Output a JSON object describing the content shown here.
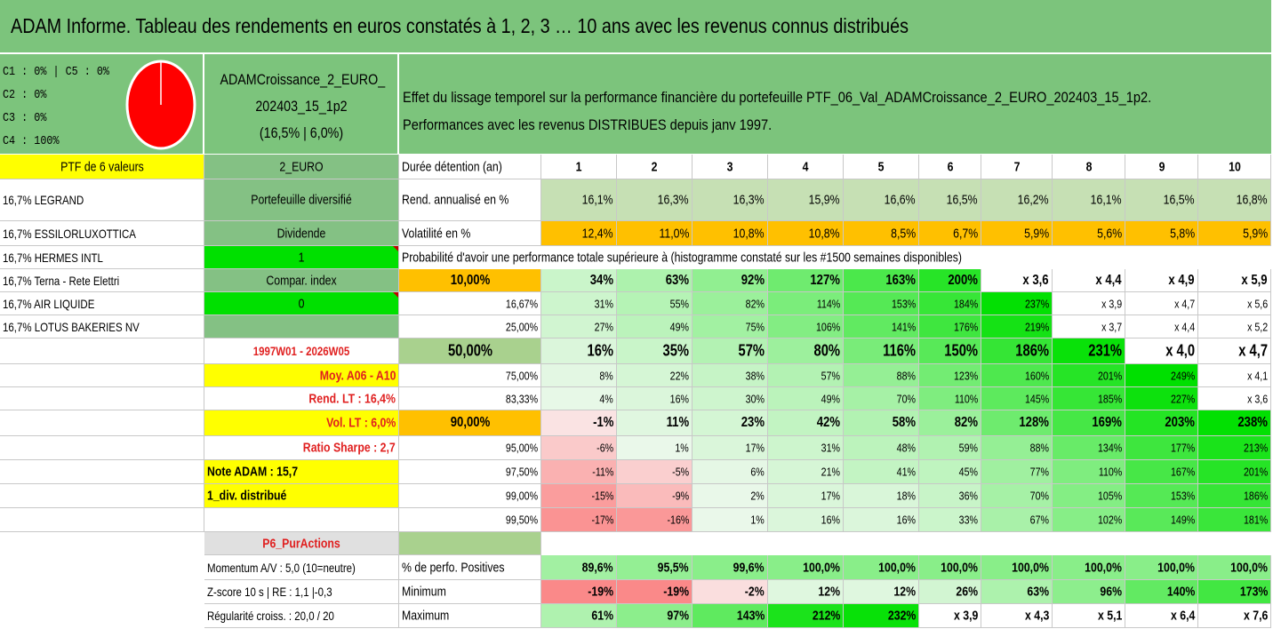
{
  "title": "ADAM Informe. Tableau des rendements en euros constatés à 1, 2, 3 … 10 ans avec les revenus connus distribués",
  "allocation": {
    "lines": [
      "C1 : 0% | C5 : 0%",
      "C2 : 0%",
      "C3 : 0%",
      "C4 : 100%"
    ],
    "pie": {
      "slices": [
        {
          "name": "C4",
          "value": 100,
          "color": "#ff0000"
        }
      ]
    }
  },
  "fund_box": {
    "lines": [
      "ADAMCroissance_2_EURO_",
      "202403_15_1p2",
      "(16,5% | 6,0%)"
    ]
  },
  "header_desc": {
    "lines": [
      "Effet du lissage temporel sur la performance financière du portefeuille PTF_06_Val_ADAMCroissance_2_EURO_202403_15_1p2.",
      "Performances avec les revenus DISTRIBUES depuis janv 1997."
    ]
  },
  "colors": {
    "title_bg": "#7cc47c",
    "yellow": "#ffff00",
    "orange": "#ffc000",
    "mid_green": "#84c184",
    "bright_green": "#00e000",
    "light_green": "#c6e0b4",
    "gray_green": "#a9d18e",
    "red_text": "#e02020"
  },
  "left_panel": {
    "ptf_label": "PTF de 6 valeurs",
    "currency": "2_EURO",
    "holdings": [
      {
        "name": "16,7% LEGRAND",
        "tag": "Portefeuille diversifié"
      },
      {
        "name": "16,7% ESSILORLUXOTTICA",
        "tag": "Dividende"
      },
      {
        "name": "16,7% HERMES INTL",
        "tag": "1"
      },
      {
        "name": "16,7% Terna - Rete Elettri",
        "tag": "Compar. index"
      },
      {
        "name": "16,7% AIR LIQUIDE",
        "tag": "0"
      },
      {
        "name": "16,7% LOTUS BAKERIES NV",
        "tag": ""
      }
    ],
    "period": "1997W01 - 2026W05",
    "moy": "Moy. A06 - A10",
    "rend_lt": "Rend. LT : 16,4%",
    "vol_lt": "Vol. LT : 6,0%",
    "sharpe": "Ratio Sharpe : 2,7",
    "note": "Note ADAM : 15,7",
    "div": "1_div. distribué",
    "p6": "P6_PurActions",
    "momentum": "Momentum A/V : 5,0 (10=neutre)",
    "zscore": "Z-score 10 s | RE : 1,1 |-0,3",
    "regularite": "Régularité croiss. : 20,0 / 20"
  },
  "table": {
    "duree_label": "Durée détention (an)",
    "years": [
      "1",
      "2",
      "3",
      "4",
      "5",
      "6",
      "7",
      "8",
      "9",
      "10"
    ],
    "rend_label": "Rend. annualisé en %",
    "rend": [
      "16,1%",
      "16,3%",
      "16,3%",
      "15,9%",
      "16,6%",
      "16,5%",
      "16,2%",
      "16,1%",
      "16,5%",
      "16,8%"
    ],
    "vol_label": "Volatilité en %",
    "vol": [
      "12,4%",
      "11,0%",
      "10,8%",
      "10,8%",
      "8,5%",
      "6,7%",
      "5,9%",
      "5,6%",
      "5,8%",
      "5,9%"
    ],
    "prob_title": "Probabilité d'avoir une performance totale supérieure à (histogramme constaté sur les #1500 semaines disponibles)",
    "prob_rows": [
      {
        "p": "10,00%",
        "v": [
          "34%",
          "63%",
          "92%",
          "127%",
          "163%",
          "200%",
          "x 3,6",
          "x 4,4",
          "x 4,9",
          "x 5,9"
        ]
      },
      {
        "p": "16,67%",
        "v": [
          "31%",
          "55%",
          "82%",
          "114%",
          "153%",
          "184%",
          "237%",
          "x 3,9",
          "x 4,7",
          "x 5,6"
        ]
      },
      {
        "p": "25,00%",
        "v": [
          "27%",
          "49%",
          "75%",
          "106%",
          "141%",
          "176%",
          "219%",
          "x 3,7",
          "x 4,4",
          "x 5,2"
        ]
      },
      {
        "p": "50,00%",
        "v": [
          "16%",
          "35%",
          "57%",
          "80%",
          "116%",
          "150%",
          "186%",
          "231%",
          "x 4,0",
          "x 4,7"
        ]
      },
      {
        "p": "75,00%",
        "v": [
          "8%",
          "22%",
          "38%",
          "57%",
          "88%",
          "123%",
          "160%",
          "201%",
          "249%",
          "x 4,1"
        ]
      },
      {
        "p": "83,33%",
        "v": [
          "4%",
          "16%",
          "30%",
          "49%",
          "70%",
          "110%",
          "145%",
          "185%",
          "227%",
          "x 3,6"
        ]
      },
      {
        "p": "90,00%",
        "v": [
          "-1%",
          "11%",
          "23%",
          "42%",
          "58%",
          "82%",
          "128%",
          "169%",
          "203%",
          "238%"
        ]
      },
      {
        "p": "95,00%",
        "v": [
          "-6%",
          "1%",
          "17%",
          "31%",
          "48%",
          "59%",
          "88%",
          "134%",
          "177%",
          "213%"
        ]
      },
      {
        "p": "97,50%",
        "v": [
          "-11%",
          "-5%",
          "6%",
          "21%",
          "41%",
          "45%",
          "77%",
          "110%",
          "167%",
          "201%"
        ]
      },
      {
        "p": "99,00%",
        "v": [
          "-15%",
          "-9%",
          "2%",
          "17%",
          "18%",
          "36%",
          "70%",
          "105%",
          "153%",
          "186%"
        ]
      },
      {
        "p": "99,50%",
        "v": [
          "-17%",
          "-16%",
          "1%",
          "16%",
          "16%",
          "33%",
          "67%",
          "102%",
          "149%",
          "181%"
        ]
      }
    ],
    "pos_label": "% de perfo. Positives",
    "pos": [
      "89,6%",
      "95,5%",
      "99,6%",
      "100,0%",
      "100,0%",
      "100,0%",
      "100,0%",
      "100,0%",
      "100,0%",
      "100,0%"
    ],
    "min_label": "Minimum",
    "min": [
      "-19%",
      "-19%",
      "-2%",
      "12%",
      "12%",
      "26%",
      "63%",
      "96%",
      "140%",
      "173%"
    ],
    "max_label": "Maximum",
    "max": [
      "61%",
      "97%",
      "143%",
      "212%",
      "232%",
      "x 3,9",
      "x 4,3",
      "x 5,1",
      "x 6,4",
      "x 7,6"
    ]
  }
}
